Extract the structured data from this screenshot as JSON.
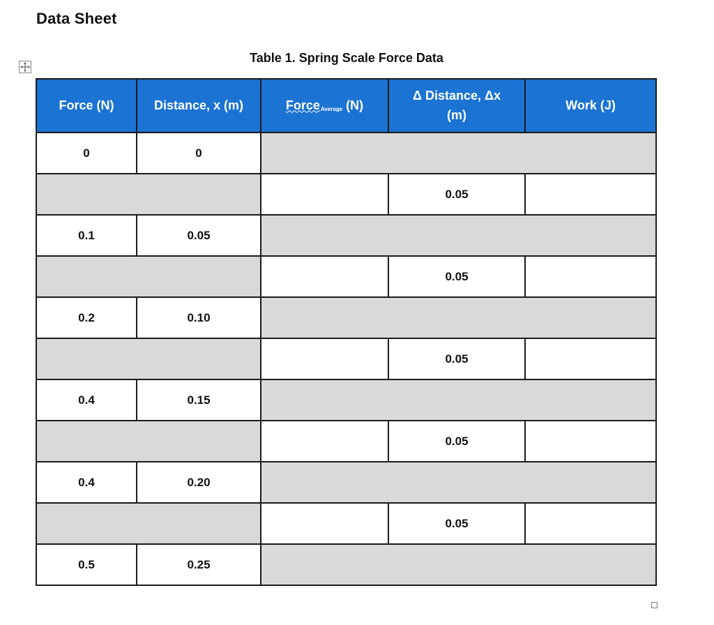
{
  "document": {
    "title": "Data Sheet",
    "table_caption": "Table 1. Spring Scale Force Data"
  },
  "table": {
    "headers": {
      "force": "Force (N)",
      "distance": "Distance, x (m)",
      "force_avg_main": "Force",
      "force_avg_sub": "Average",
      "force_avg_unit": " (N)",
      "delta_distance_line1": "Δ Distance, Δx",
      "delta_distance_line2": "(m)",
      "work": "Work (J)"
    },
    "measurement_rows": [
      {
        "force": "0",
        "distance": "0"
      },
      {
        "force": "0.1",
        "distance": "0.05"
      },
      {
        "force": "0.2",
        "distance": "0.10"
      },
      {
        "force": "0.4",
        "distance": "0.15"
      },
      {
        "force": "0.4",
        "distance": "0.20"
      },
      {
        "force": "0.5",
        "distance": "0.25"
      }
    ],
    "interval_rows": [
      {
        "force_average": "",
        "delta_distance": "0.05",
        "work": ""
      },
      {
        "force_average": "",
        "delta_distance": "0.05",
        "work": ""
      },
      {
        "force_average": "",
        "delta_distance": "0.05",
        "work": ""
      },
      {
        "force_average": "",
        "delta_distance": "0.05",
        "work": ""
      },
      {
        "force_average": "",
        "delta_distance": "0.05",
        "work": ""
      }
    ]
  },
  "colors": {
    "header_bg": "#1b73d3",
    "shaded_cell": "#d9d9d9"
  },
  "icons": {
    "table_move": "move-arrows-icon",
    "table_resize": "resize-handle-icon"
  }
}
